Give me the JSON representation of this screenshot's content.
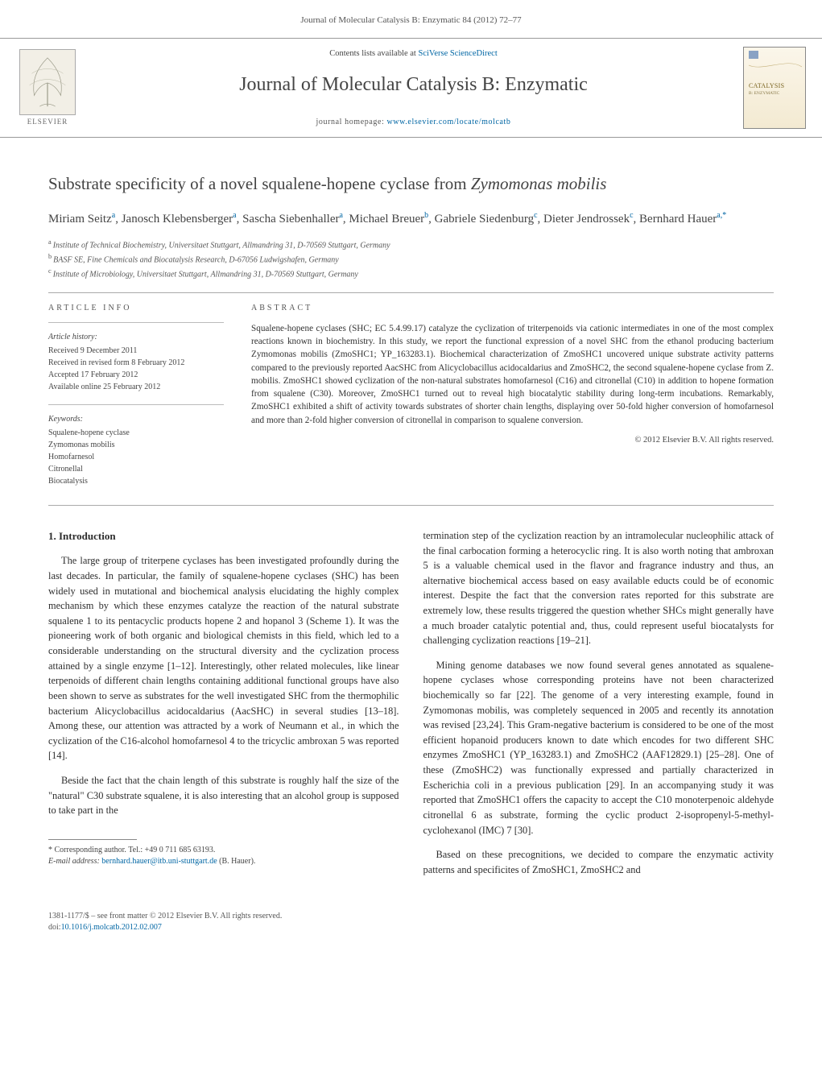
{
  "header": {
    "running_head": "Journal of Molecular Catalysis B: Enzymatic 84 (2012) 72–77"
  },
  "masthead": {
    "publisher_name": "ELSEVIER",
    "contents_prefix": "Contents lists available at ",
    "contents_link": "SciVerse ScienceDirect",
    "journal_title": "Journal of Molecular Catalysis B: Enzymatic",
    "homepage_prefix": "journal homepage: ",
    "homepage_url": "www.elsevier.com/locate/molcatb",
    "cover_word1": "CATALYSIS",
    "cover_word2": "B: ENZYMATIC"
  },
  "article": {
    "title_prefix": "Substrate specificity of a novel squalene-hopene cyclase from ",
    "title_species": "Zymomonas mobilis",
    "authors_html": "Miriam Seitz<sup>a</sup>, Janosch Klebensberger<sup>a</sup>, Sascha Siebenhaller<sup>a</sup>, Michael Breuer<sup>b</sup>, Gabriele Siedenburg<sup>c</sup>, Dieter Jendrossek<sup>c</sup>, Bernhard Hauer<sup>a,*</sup>",
    "affiliations": [
      {
        "marker": "a",
        "text": "Institute of Technical Biochemistry, Universitaet Stuttgart, Allmandring 31, D-70569 Stuttgart, Germany"
      },
      {
        "marker": "b",
        "text": "BASF SE, Fine Chemicals and Biocatalysis Research, D-67056 Ludwigshafen, Germany"
      },
      {
        "marker": "c",
        "text": "Institute of Microbiology, Universitaet Stuttgart, Allmandring 31, D-70569 Stuttgart, Germany"
      }
    ]
  },
  "info": {
    "heading": "ARTICLE INFO",
    "history_label": "Article history:",
    "history_lines": [
      "Received 9 December 2011",
      "Received in revised form 8 February 2012",
      "Accepted 17 February 2012",
      "Available online 25 February 2012"
    ],
    "keywords_label": "Keywords:",
    "keywords": [
      "Squalene-hopene cyclase",
      "Zymomonas mobilis",
      "Homofarnesol",
      "Citronellal",
      "Biocatalysis"
    ]
  },
  "abstract": {
    "heading": "ABSTRACT",
    "text": "Squalene-hopene cyclases (SHC; EC 5.4.99.17) catalyze the cyclization of triterpenoids via cationic intermediates in one of the most complex reactions known in biochemistry. In this study, we report the functional expression of a novel SHC from the ethanol producing bacterium Zymomonas mobilis (ZmoSHC1; YP_163283.1). Biochemical characterization of ZmoSHC1 uncovered unique substrate activity patterns compared to the previously reported AacSHC from Alicyclobacillus acidocaldarius and ZmoSHC2, the second squalene-hopene cyclase from Z. mobilis. ZmoSHC1 showed cyclization of the non-natural substrates homofarnesol (C16) and citronellal (C10) in addition to hopene formation from squalene (C30). Moreover, ZmoSHC1 turned out to reveal high biocatalytic stability during long-term incubations. Remarkably, ZmoSHC1 exhibited a shift of activity towards substrates of shorter chain lengths, displaying over 50-fold higher conversion of homofarnesol and more than 2-fold higher conversion of citronellal in comparison to squalene conversion.",
    "copyright": "© 2012 Elsevier B.V. All rights reserved."
  },
  "body": {
    "section_heading": "1. Introduction",
    "left_paragraphs": [
      "The large group of triterpene cyclases has been investigated profoundly during the last decades. In particular, the family of squalene-hopene cyclases (SHC) has been widely used in mutational and biochemical analysis elucidating the highly complex mechanism by which these enzymes catalyze the reaction of the natural substrate squalene 1 to its pentacyclic products hopene 2 and hopanol 3 (Scheme 1). It was the pioneering work of both organic and biological chemists in this field, which led to a considerable understanding on the structural diversity and the cyclization process attained by a single enzyme [1–12]. Interestingly, other related molecules, like linear terpenoids of different chain lengths containing additional functional groups have also been shown to serve as substrates for the well investigated SHC from the thermophilic bacterium Alicyclobacillus acidocaldarius (AacSHC) in several studies [13–18]. Among these, our attention was attracted by a work of Neumann et al., in which the cyclization of the C16-alcohol homofarnesol 4 to the tricyclic ambroxan 5 was reported [14].",
      "Beside the fact that the chain length of this substrate is roughly half the size of the \"natural\" C30 substrate squalene, it is also interesting that an alcohol group is supposed to take part in the"
    ],
    "right_paragraphs": [
      "termination step of the cyclization reaction by an intramolecular nucleophilic attack of the final carbocation forming a heterocyclic ring. It is also worth noting that ambroxan 5 is a valuable chemical used in the flavor and fragrance industry and thus, an alternative biochemical access based on easy available educts could be of economic interest. Despite the fact that the conversion rates reported for this substrate are extremely low, these results triggered the question whether SHCs might generally have a much broader catalytic potential and, thus, could represent useful biocatalysts for challenging cyclization reactions [19–21].",
      "Mining genome databases we now found several genes annotated as squalene-hopene cyclases whose corresponding proteins have not been characterized biochemically so far [22]. The genome of a very interesting example, found in Zymomonas mobilis, was completely sequenced in 2005 and recently its annotation was revised [23,24]. This Gram-negative bacterium is considered to be one of the most efficient hopanoid producers known to date which encodes for two different SHC enzymes ZmoSHC1 (YP_163283.1) and ZmoSHC2 (AAF12829.1) [25–28]. One of these (ZmoSHC2) was functionally expressed and partially characterized in Escherichia coli in a previous publication [29]. In an accompanying study it was reported that ZmoSHC1 offers the capacity to accept the C10 monoterpenoic aldehyde citronellal 6 as substrate, forming the cyclic product 2-isopropenyl-5-methyl-cyclohexanol (IMC) 7 [30].",
      "Based on these precognitions, we decided to compare the enzymatic activity patterns and specificites of ZmoSHC1, ZmoSHC2 and"
    ]
  },
  "footnotes": {
    "corresponding": "Corresponding author. Tel.: +49 0 711 685 63193.",
    "email_label": "E-mail address:",
    "email": "bernhard.hauer@itb.uni-stuttgart.de",
    "email_suffix": "(B. Hauer)."
  },
  "bottom": {
    "line1": "1381-1177/$ – see front matter © 2012 Elsevier B.V. All rights reserved.",
    "doi_prefix": "doi:",
    "doi": "10.1016/j.molcatb.2012.02.007"
  },
  "colors": {
    "link": "#0066a4",
    "text": "#333333",
    "light_text": "#555555",
    "rule": "#aaaaaa"
  }
}
